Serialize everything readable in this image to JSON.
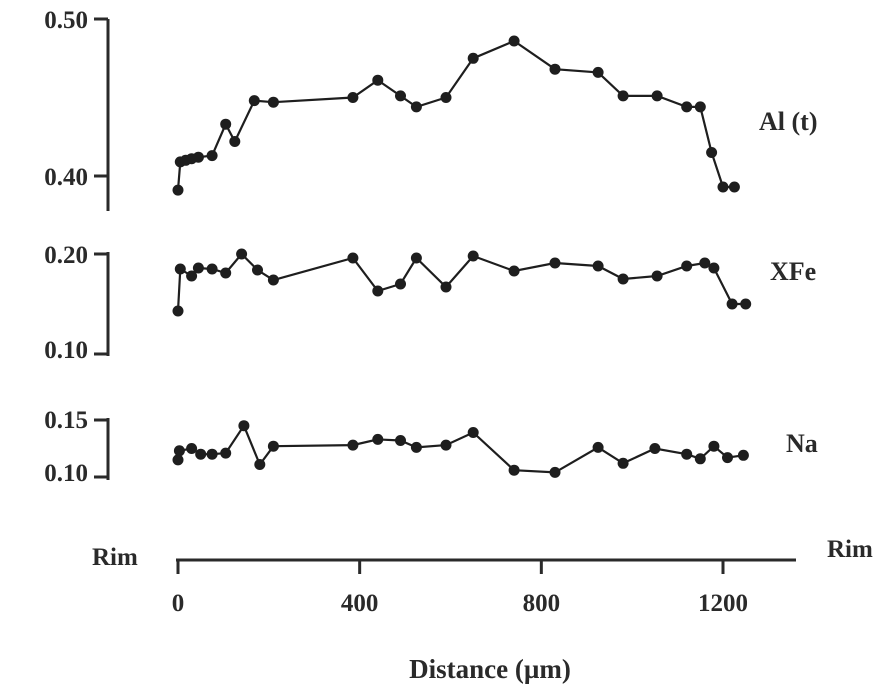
{
  "chart_data": {
    "type": "line",
    "xlabel": "Distance (µm)",
    "xlim": [
      0,
      1300
    ],
    "x_ticks": [
      "0",
      "400",
      "800",
      "1200"
    ],
    "x_tick_values": [
      0,
      400,
      800,
      1200
    ],
    "left_end_label": "Rim",
    "right_end_label": "Rim",
    "panels": [
      {
        "id": "al",
        "label": "Al (t)",
        "ylim": [
          0.38,
          0.5
        ],
        "y_ticks": [
          "0.50",
          "0.40"
        ],
        "y_tick_values": [
          0.5,
          0.4
        ],
        "x": [
          0,
          5,
          17,
          30,
          45,
          75,
          105,
          125,
          168,
          210,
          385,
          440,
          490,
          525,
          590,
          650,
          740,
          830,
          925,
          980,
          1055,
          1120,
          1150,
          1175,
          1200,
          1225
        ],
        "y": [
          0.391,
          0.409,
          0.41,
          0.411,
          0.412,
          0.413,
          0.433,
          0.422,
          0.448,
          0.447,
          0.45,
          0.461,
          0.451,
          0.444,
          0.45,
          0.475,
          0.486,
          0.468,
          0.466,
          0.451,
          0.451,
          0.444,
          0.444,
          0.415,
          0.393,
          0.393
        ]
      },
      {
        "id": "xfe",
        "label": "XFe",
        "ylim": [
          0.1,
          0.2
        ],
        "y_ticks": [
          "0.20",
          "0.10"
        ],
        "y_tick_values": [
          0.2,
          0.1
        ],
        "x": [
          0,
          5,
          30,
          45,
          75,
          105,
          140,
          175,
          210,
          385,
          440,
          490,
          525,
          590,
          650,
          740,
          830,
          925,
          980,
          1055,
          1120,
          1160,
          1180,
          1220,
          1250
        ],
        "y": [
          0.143,
          0.185,
          0.178,
          0.186,
          0.185,
          0.181,
          0.2,
          0.184,
          0.174,
          0.196,
          0.163,
          0.17,
          0.196,
          0.167,
          0.198,
          0.183,
          0.191,
          0.188,
          0.175,
          0.178,
          0.188,
          0.191,
          0.186,
          0.15,
          0.15
        ]
      },
      {
        "id": "na",
        "label": "Na",
        "ylim": [
          0.1,
          0.15
        ],
        "y_ticks": [
          "0.15",
          "0.10"
        ],
        "y_tick_values": [
          0.15,
          0.1
        ],
        "x": [
          0,
          3,
          30,
          50,
          75,
          105,
          145,
          180,
          210,
          385,
          440,
          490,
          525,
          590,
          650,
          740,
          830,
          925,
          980,
          1050,
          1120,
          1150,
          1180,
          1210,
          1245
        ],
        "y": [
          0.115,
          0.123,
          0.125,
          0.12,
          0.12,
          0.121,
          0.145,
          0.111,
          0.127,
          0.128,
          0.133,
          0.132,
          0.126,
          0.128,
          0.139,
          0.106,
          0.104,
          0.126,
          0.112,
          0.125,
          0.12,
          0.116,
          0.127,
          0.117,
          0.119
        ]
      }
    ]
  }
}
